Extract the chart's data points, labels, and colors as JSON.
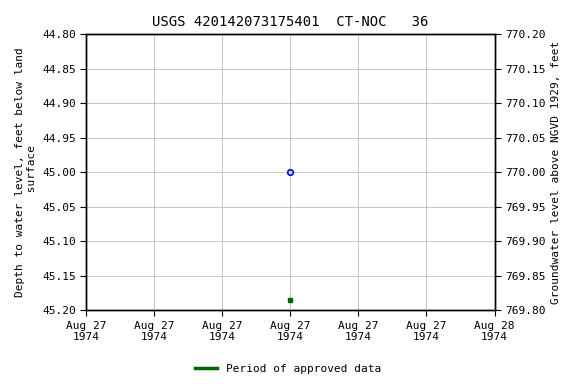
{
  "title": "USGS 420142073175401  CT-NOC   36",
  "ylabel_left": "Depth to water level, feet below land\n surface",
  "ylabel_right": "Groundwater level above NGVD 1929, feet",
  "ylim_left": [
    44.8,
    45.2
  ],
  "ylim_right": [
    769.8,
    770.2
  ],
  "yticks_left": [
    44.8,
    44.85,
    44.9,
    44.95,
    45.0,
    45.05,
    45.1,
    45.15,
    45.2
  ],
  "yticks_right": [
    769.8,
    769.85,
    769.9,
    769.95,
    770.0,
    770.05,
    770.1,
    770.15,
    770.2
  ],
  "data_point_x_hours": 12,
  "data_point_y": 45.0,
  "data_point_color": "#0000cc",
  "data_point_marker": "o",
  "data_point_markersize": 4,
  "green_mark_x_hours": 12,
  "green_mark_y": 45.185,
  "green_mark_color": "#006600",
  "green_mark_marker": "s",
  "green_mark_markersize": 3,
  "xmin_hours": 0,
  "xmax_hours": 24,
  "xtick_positions_hours": [
    0,
    4,
    8,
    12,
    16,
    20,
    24
  ],
  "xtick_labels": [
    "Aug 27\n1974",
    "Aug 27\n1974",
    "Aug 27\n1974",
    "Aug 27\n1974",
    "Aug 27\n1974",
    "Aug 27\n1974",
    "Aug 28\n1974"
  ],
  "grid_color": "#bbbbbb",
  "grid_linewidth": 0.6,
  "background_color": "#ffffff",
  "title_fontsize": 10,
  "axis_label_fontsize": 8,
  "tick_fontsize": 8,
  "legend_label": "Period of approved data",
  "legend_color": "#006600",
  "legend_linewidth": 2.5,
  "legend_fontsize": 8
}
